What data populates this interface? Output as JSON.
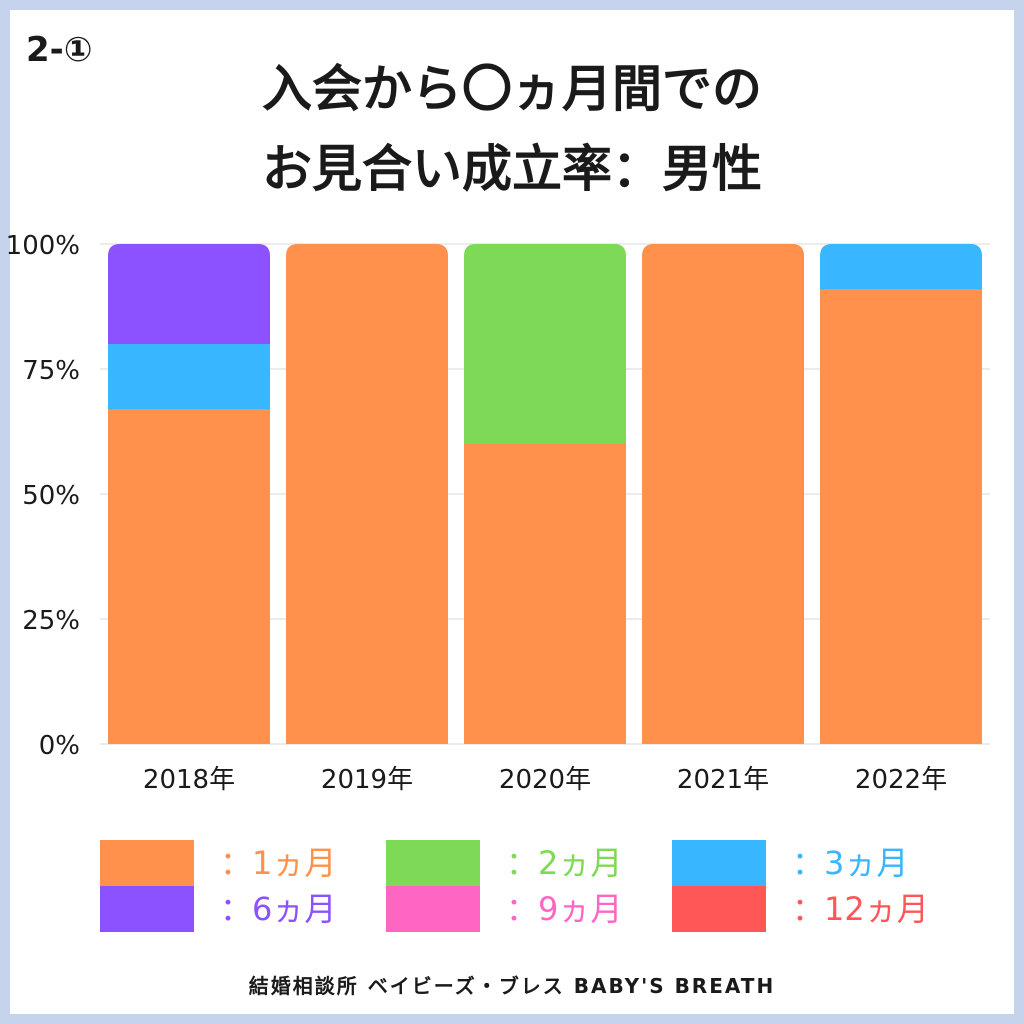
{
  "badge": "2-①",
  "title_line1": "入会から〇ヵ月間での",
  "title_line2": "お見合い成立率：男性",
  "footer": "結婚相談所 ベイビーズ・ブレス BABY'S BREATH",
  "colors": {
    "1ヵ月": "#ff914d",
    "2ヵ月": "#7ed957",
    "3ヵ月": "#38b6ff",
    "6ヵ月": "#8c52ff",
    "9ヵ月": "#ff66c4",
    "12ヵ月": "#ff5757",
    "frame": "#c5d4ec",
    "grid": "#d9d9d9"
  },
  "legend": [
    {
      "label": "：1ヵ月",
      "color": "#ff914d"
    },
    {
      "label": "：2ヵ月",
      "color": "#7ed957"
    },
    {
      "label": "：3ヵ月",
      "color": "#38b6ff"
    },
    {
      "label": "：6ヵ月",
      "color": "#8c52ff"
    },
    {
      "label": "：9ヵ月",
      "color": "#ff66c4"
    },
    {
      "label": "：12ヵ月",
      "color": "#ff5757"
    }
  ],
  "chart_data": {
    "type": "bar",
    "stacked": true,
    "categories": [
      "2018年",
      "2019年",
      "2020年",
      "2021年",
      "2022年"
    ],
    "series": [
      {
        "name": "1ヵ月",
        "color": "#ff914d",
        "values": [
          67,
          100,
          60,
          100,
          91
        ]
      },
      {
        "name": "2ヵ月",
        "color": "#7ed957",
        "values": [
          0,
          0,
          40,
          0,
          0
        ]
      },
      {
        "name": "3ヵ月",
        "color": "#38b6ff",
        "values": [
          13,
          0,
          0,
          0,
          9
        ]
      },
      {
        "name": "6ヵ月",
        "color": "#8c52ff",
        "values": [
          20,
          0,
          0,
          0,
          0
        ]
      },
      {
        "name": "9ヵ月",
        "color": "#ff66c4",
        "values": [
          0,
          0,
          0,
          0,
          0
        ]
      },
      {
        "name": "12ヵ月",
        "color": "#ff5757",
        "values": [
          0,
          0,
          0,
          0,
          0
        ]
      }
    ],
    "ylim": [
      0,
      100
    ],
    "yticks": [
      0,
      25,
      50,
      75,
      100
    ],
    "ytick_labels": [
      "0%",
      "25%",
      "50%",
      "75%",
      "100%"
    ],
    "grid": true,
    "legend_position": "bottom"
  }
}
